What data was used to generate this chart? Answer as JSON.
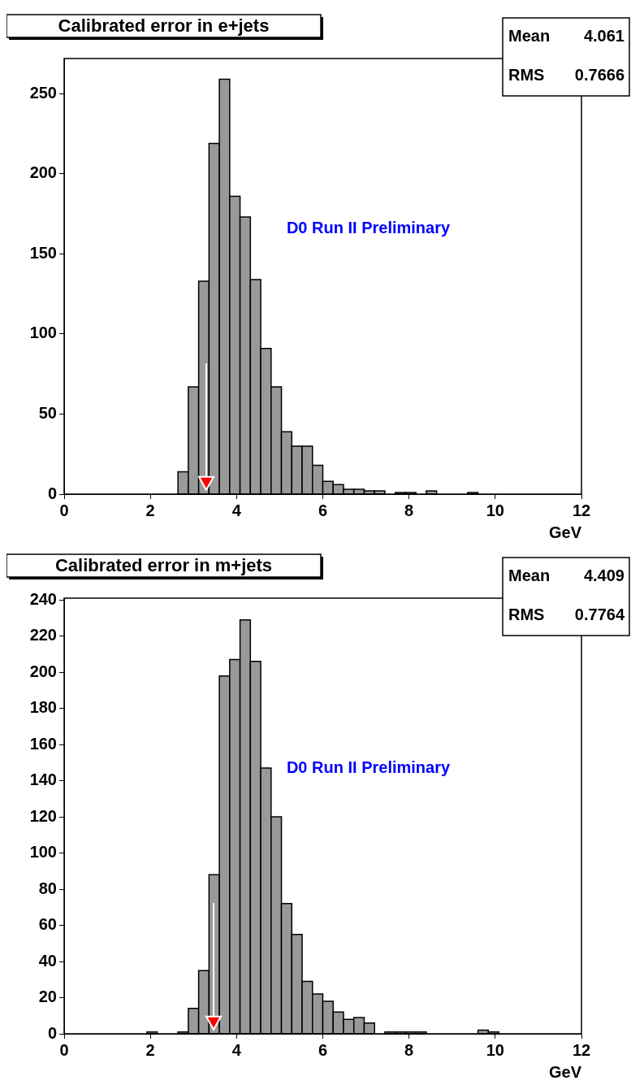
{
  "chart_data": [
    {
      "type": "histogram",
      "title": "Calibrated error in e+jets",
      "xlabel": "GeV",
      "bins": [
        0,
        0.24,
        0.48,
        0.72,
        0.96,
        1.2,
        1.44,
        1.68,
        1.92,
        2.16,
        2.4,
        2.64,
        2.88,
        3.12,
        3.36,
        3.6,
        3.84,
        4.08,
        4.32,
        4.56,
        4.8,
        5.04,
        5.28,
        5.52,
        5.76,
        6,
        6.24,
        6.48,
        6.72,
        6.96,
        7.2,
        7.44,
        7.68,
        7.92,
        8.16,
        8.4,
        8.64,
        8.88,
        9.12,
        9.36,
        9.6,
        9.84,
        10.08,
        10.32,
        10.56,
        10.8,
        11.04,
        11.28,
        11.52,
        11.76,
        12
      ],
      "values": [
        0,
        0,
        0,
        0,
        0,
        0,
        0,
        0,
        0,
        0,
        0,
        14,
        67,
        133,
        219,
        259,
        186,
        173,
        134,
        91,
        67,
        39,
        30,
        30,
        18,
        8,
        6,
        3,
        3,
        2,
        2,
        0,
        1,
        1,
        0,
        2,
        0,
        0,
        0,
        1,
        0,
        0,
        0,
        0,
        0,
        0,
        0,
        0,
        0,
        0
      ],
      "color": "#999999",
      "xlim": [
        0,
        12
      ],
      "xticks": [
        0,
        2,
        4,
        6,
        8,
        10,
        12
      ],
      "ylim": [
        0,
        272
      ],
      "yticks": [
        0,
        50,
        100,
        150,
        200,
        250
      ],
      "grid": false,
      "legend": false,
      "ref_lines": [
        {
          "axis": "x",
          "value": 3.3,
          "color": "#ffffff"
        }
      ],
      "annotations": [
        "D0 Run II Preliminary",
        "Mean 4.061",
        "RMS 0.7666"
      ]
    },
    {
      "type": "histogram",
      "title": "Calibrated error in m+jets",
      "xlabel": "GeV",
      "bins": [
        0,
        0.24,
        0.48,
        0.72,
        0.96,
        1.2,
        1.44,
        1.68,
        1.92,
        2.16,
        2.4,
        2.64,
        2.88,
        3.12,
        3.36,
        3.6,
        3.84,
        4.08,
        4.32,
        4.56,
        4.8,
        5.04,
        5.28,
        5.52,
        5.76,
        6,
        6.24,
        6.48,
        6.72,
        6.96,
        7.2,
        7.44,
        7.68,
        7.92,
        8.16,
        8.4,
        8.64,
        8.88,
        9.12,
        9.36,
        9.6,
        9.84,
        10.08,
        10.32,
        10.56,
        10.8,
        11.04,
        11.28,
        11.52,
        11.76,
        12
      ],
      "values": [
        0,
        0,
        0,
        0,
        0,
        0,
        0,
        0,
        1,
        0,
        0,
        1,
        14,
        35,
        88,
        198,
        207,
        229,
        206,
        147,
        120,
        72,
        55,
        29,
        22,
        18,
        12,
        8,
        9,
        6,
        0,
        1,
        1,
        1,
        1,
        0,
        0,
        0,
        0,
        0,
        2,
        1,
        0,
        0,
        0,
        0,
        0,
        0,
        0,
        0
      ],
      "color": "#999999",
      "xlim": [
        0,
        12
      ],
      "xticks": [
        0,
        2,
        4,
        6,
        8,
        10,
        12
      ],
      "ylim": [
        0,
        241
      ],
      "yticks": [
        0,
        20,
        40,
        60,
        80,
        100,
        120,
        140,
        160,
        180,
        200,
        220,
        240
      ],
      "grid": false,
      "legend": false,
      "ref_lines": [
        {
          "axis": "x",
          "value": 3.47,
          "color": "#ffffff"
        }
      ],
      "annotations": [
        "D0 Run II Preliminary",
        "Mean 4.409",
        "RMS 0.7764"
      ]
    }
  ]
}
